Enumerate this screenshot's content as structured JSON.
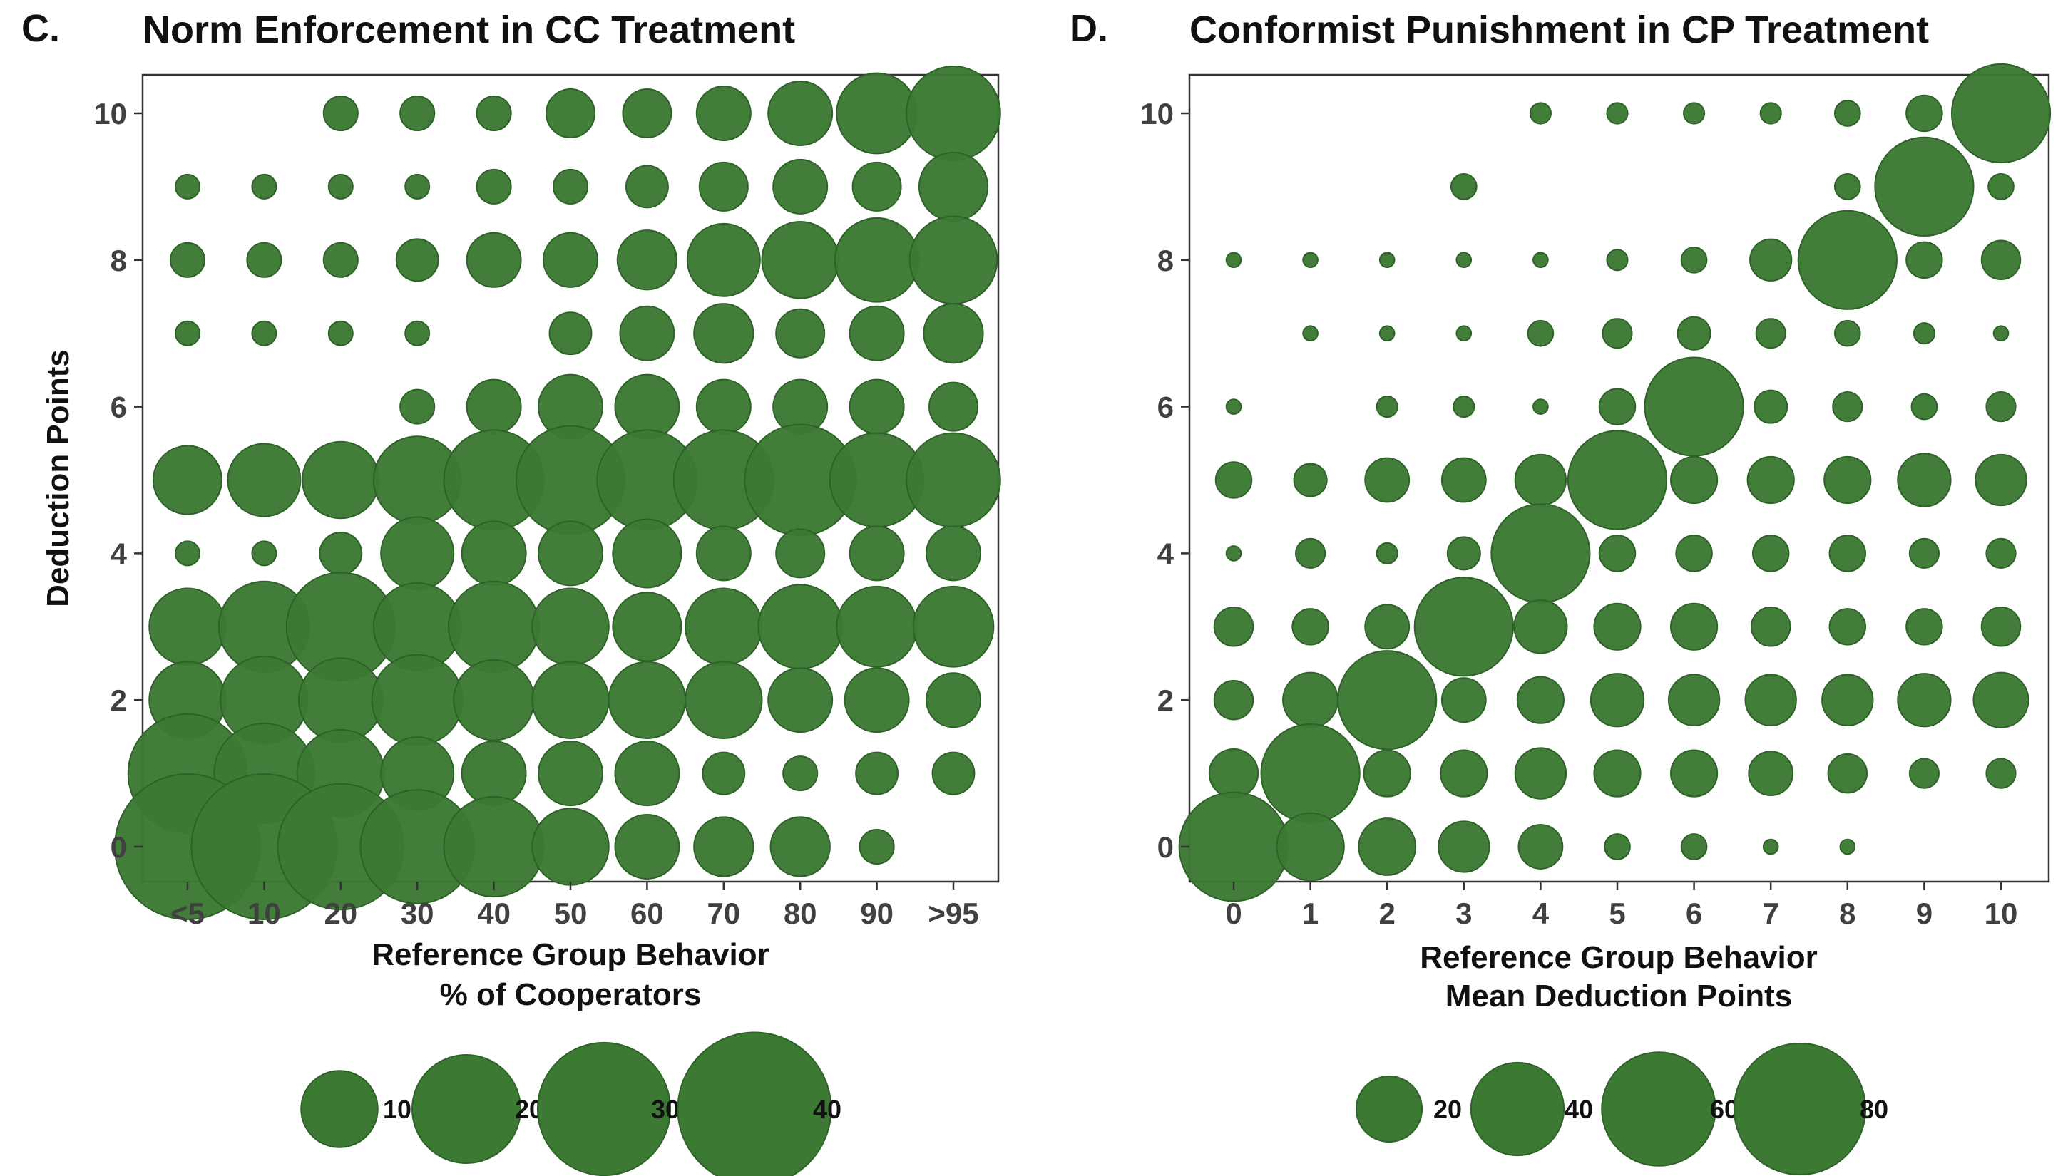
{
  "colors": {
    "bubble_fill": "#3c7a34",
    "bubble_stroke": "#2e6228",
    "axis": "#333333",
    "tick_text": "#404040",
    "text": "#111111"
  },
  "chart_data": [
    {
      "type": "scatter",
      "panel_letter": "C.",
      "title": "Norm Enforcement in CC Treatment",
      "xlabel": [
        "Reference Group Behavior",
        "% of Cooperators"
      ],
      "ylabel": "Deduction Points",
      "categories": [
        "<5",
        "10",
        "20",
        "30",
        "40",
        "50",
        "60",
        "70",
        "80",
        "90",
        ">95"
      ],
      "y_ticks": [
        0,
        2,
        4,
        6,
        8,
        10
      ],
      "ylim": [
        -0.5,
        10.5
      ],
      "size_legend": [
        10,
        20,
        30,
        40
      ],
      "rows": [
        {
          "y": 10,
          "values": [
            null,
            null,
            2,
            2,
            2,
            4,
            4,
            5,
            7,
            11,
            15
          ]
        },
        {
          "y": 9,
          "values": [
            1,
            1,
            1,
            1,
            2,
            2,
            3,
            4,
            5,
            4,
            8
          ]
        },
        {
          "y": 8,
          "values": [
            2,
            2,
            2,
            3,
            5,
            5,
            6,
            9,
            10,
            12,
            13
          ]
        },
        {
          "y": 7,
          "values": [
            1,
            1,
            1,
            1,
            null,
            3,
            5,
            6,
            4,
            5,
            6
          ]
        },
        {
          "y": 6,
          "values": [
            null,
            null,
            null,
            2,
            5,
            7,
            7,
            5,
            5,
            5,
            4
          ]
        },
        {
          "y": 5,
          "values": [
            8,
            9,
            10,
            13,
            17,
            20,
            17,
            17,
            21,
            15,
            15
          ]
        },
        {
          "y": 4,
          "values": [
            1,
            1,
            3,
            9,
            7,
            7,
            8,
            5,
            4,
            5,
            5
          ]
        },
        {
          "y": 3,
          "values": [
            10,
            14,
            20,
            13,
            14,
            10,
            8,
            10,
            12,
            11,
            11
          ]
        },
        {
          "y": 2,
          "values": [
            10,
            13,
            12,
            14,
            11,
            10,
            10,
            10,
            7,
            7,
            5
          ]
        },
        {
          "y": 1,
          "values": [
            24,
            17,
            13,
            9,
            7,
            7,
            7,
            3,
            2,
            3,
            3
          ]
        },
        {
          "y": 0,
          "values": [
            36,
            36,
            27,
            22,
            17,
            10,
            7,
            6,
            6,
            2,
            null
          ]
        }
      ]
    },
    {
      "type": "scatter",
      "panel_letter": "D.",
      "title": "Conformist Punishment in CP Treatment",
      "xlabel": [
        "Reference Group Behavior",
        "Mean Deduction Points"
      ],
      "ylabel": "",
      "categories": [
        "0",
        "1",
        "2",
        "3",
        "4",
        "5",
        "6",
        "7",
        "8",
        "9",
        "10"
      ],
      "y_ticks": [
        0,
        2,
        4,
        6,
        8,
        10
      ],
      "ylim": [
        -0.5,
        10.5
      ],
      "size_legend": [
        20,
        40,
        60,
        80
      ],
      "rows": [
        {
          "y": 10,
          "values": [
            null,
            null,
            null,
            null,
            2,
            2,
            2,
            2,
            3,
            6,
            45
          ]
        },
        {
          "y": 9,
          "values": [
            null,
            null,
            null,
            3,
            null,
            null,
            null,
            null,
            3,
            45,
            3
          ]
        },
        {
          "y": 8,
          "values": [
            1,
            1,
            1,
            1,
            1,
            2,
            3,
            8,
            45,
            6,
            7
          ]
        },
        {
          "y": 7,
          "values": [
            null,
            1,
            1,
            1,
            3,
            4,
            5,
            4,
            3,
            2,
            1
          ]
        },
        {
          "y": 6,
          "values": [
            1,
            null,
            2,
            2,
            1,
            6,
            45,
            5,
            4,
            3,
            4
          ]
        },
        {
          "y": 5,
          "values": [
            6,
            5,
            9,
            9,
            12,
            45,
            10,
            10,
            10,
            13,
            12
          ]
        },
        {
          "y": 4,
          "values": [
            1,
            4,
            2,
            5,
            45,
            6,
            6,
            6,
            6,
            4,
            4
          ]
        },
        {
          "y": 3,
          "values": [
            7,
            6,
            9,
            45,
            13,
            10,
            10,
            7,
            6,
            6,
            7
          ]
        },
        {
          "y": 2,
          "values": [
            7,
            14,
            45,
            9,
            10,
            13,
            12,
            12,
            12,
            13,
            14
          ]
        },
        {
          "y": 1,
          "values": [
            11,
            45,
            10,
            10,
            12,
            10,
            10,
            9,
            7,
            4,
            4
          ]
        },
        {
          "y": 0,
          "values": [
            55,
            21,
            15,
            12,
            9,
            3,
            3,
            1,
            1,
            null,
            null
          ]
        }
      ]
    }
  ]
}
